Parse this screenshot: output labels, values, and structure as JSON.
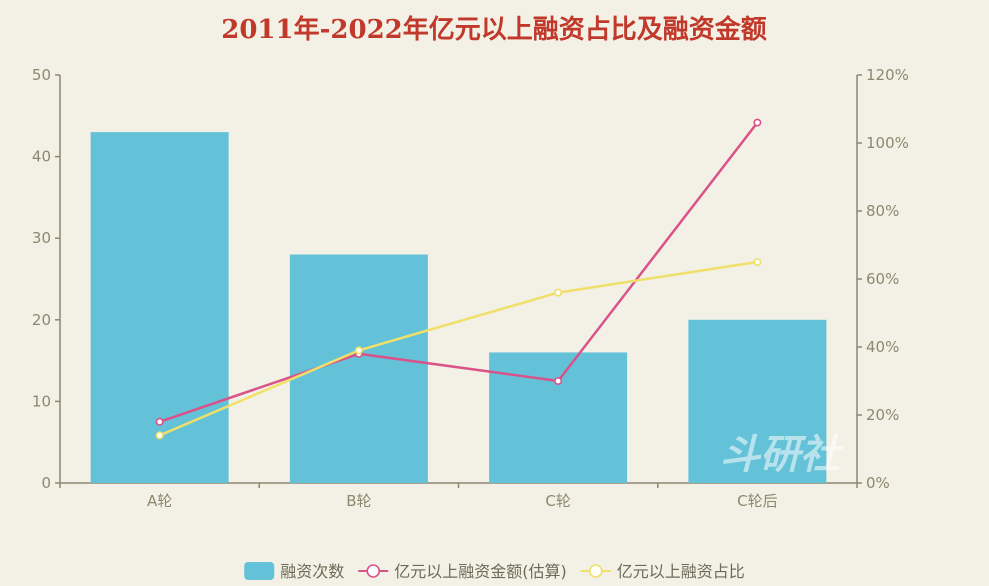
{
  "chart_data": {
    "type": "bar",
    "title": "2011年-2022年亿元以上融资占比及融资金额",
    "categories": [
      "A轮",
      "B轮",
      "C轮",
      "C轮后"
    ],
    "y_left": {
      "ylim": [
        0,
        50
      ],
      "ticks": [
        0,
        10,
        20,
        30,
        40,
        50
      ],
      "tick_labels": [
        "0",
        "10",
        "20",
        "30",
        "40",
        "50"
      ]
    },
    "y_right": {
      "ylim": [
        0,
        120
      ],
      "ticks": [
        0,
        20,
        40,
        60,
        80,
        100,
        120
      ],
      "tick_labels": [
        "0%",
        "20%",
        "40%",
        "60%",
        "80%",
        "100%",
        "120%"
      ]
    },
    "series": [
      {
        "name": "融资次数",
        "type": "bar",
        "axis": "left",
        "color": "#63c2d8",
        "values": [
          43,
          28,
          16,
          20
        ]
      },
      {
        "name": "亿元以上融资金额(估算)",
        "type": "line",
        "axis": "right",
        "color": "#d9538a",
        "values": [
          18,
          38,
          30,
          106
        ]
      },
      {
        "name": "亿元以上融资占比",
        "type": "line",
        "axis": "right",
        "color": "#f0e06a",
        "values": [
          14,
          39,
          56,
          65
        ]
      }
    ],
    "legend_position": "bottom-center",
    "grid": false
  },
  "watermark_text": "斗研社",
  "colors": {
    "background": "#f3f1e5",
    "axis": "#8c8870",
    "title": "#c0392b"
  }
}
